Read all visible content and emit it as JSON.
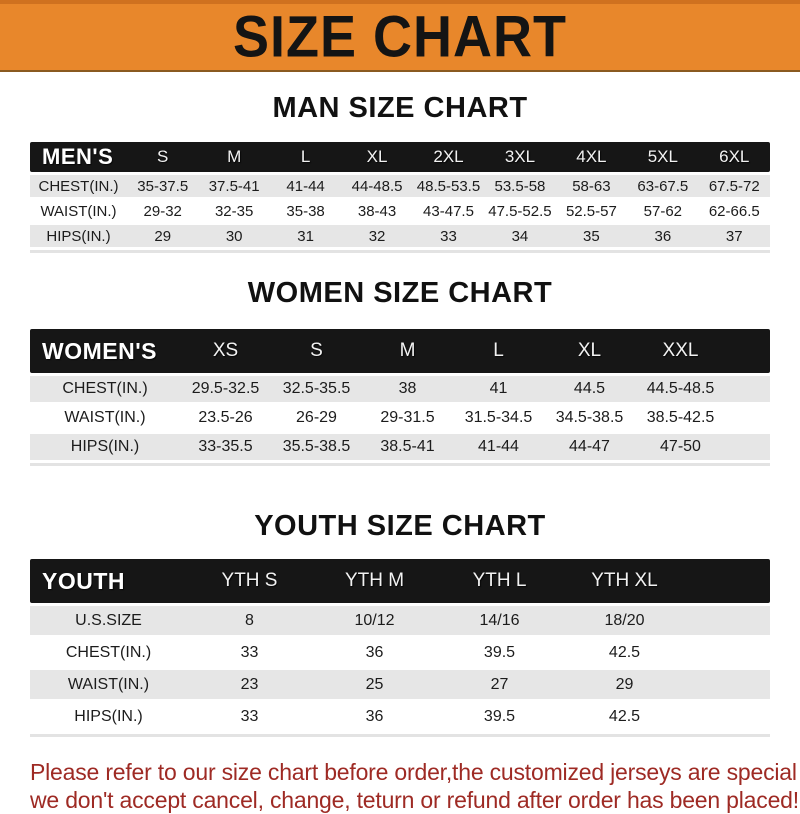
{
  "banner": {
    "title": "SIZE CHART"
  },
  "colors": {
    "banner_orange": "#e8872b",
    "header_black": "#161616",
    "row_gray": "#e6e6e6",
    "footer_red": "#9e2a24"
  },
  "sections": [
    {
      "heading": "MAN SIZE CHART",
      "table": {
        "title": "MEN'S",
        "sizes": [
          "S",
          "M",
          "L",
          "XL",
          "2XL",
          "3XL",
          "4XL",
          "5XL",
          "6XL"
        ],
        "rows": [
          {
            "label": "CHEST(IN.)",
            "values": [
              "35-37.5",
              "37.5-41",
              "41-44",
              "44-48.5",
              "48.5-53.5",
              "53.5-58",
              "58-63",
              "63-67.5",
              "67.5-72"
            ]
          },
          {
            "label": "WAIST(IN.)",
            "values": [
              "29-32",
              "32-35",
              "35-38",
              "38-43",
              "43-47.5",
              "47.5-52.5",
              "52.5-57",
              "57-62",
              "62-66.5"
            ]
          },
          {
            "label": "HIPS(IN.)",
            "values": [
              "29",
              "30",
              "31",
              "32",
              "33",
              "34",
              "35",
              "36",
              "37"
            ]
          }
        ]
      }
    },
    {
      "heading": "WOMEN SIZE CHART",
      "table": {
        "title": "WOMEN'S",
        "sizes": [
          "XS",
          "S",
          "M",
          "L",
          "XL",
          "XXL"
        ],
        "rows": [
          {
            "label": "CHEST(IN.)",
            "values": [
              "29.5-32.5",
              "32.5-35.5",
              "38",
              "41",
              "44.5",
              "44.5-48.5"
            ]
          },
          {
            "label": "WAIST(IN.)",
            "values": [
              "23.5-26",
              "26-29",
              "29-31.5",
              "31.5-34.5",
              "34.5-38.5",
              "38.5-42.5"
            ]
          },
          {
            "label": "HIPS(IN.)",
            "values": [
              "33-35.5",
              "35.5-38.5",
              "38.5-41",
              "41-44",
              "44-47",
              "47-50"
            ]
          }
        ]
      }
    },
    {
      "heading": "YOUTH SIZE CHART",
      "table": {
        "title": "YOUTH",
        "sizes": [
          "YTH S",
          "YTH M",
          "YTH L",
          "YTH XL"
        ],
        "rows": [
          {
            "label": "U.S.SIZE",
            "values": [
              "8",
              "10/12",
              "14/16",
              "18/20"
            ]
          },
          {
            "label": "CHEST(IN.)",
            "values": [
              "33",
              "36",
              "39.5",
              "42.5"
            ]
          },
          {
            "label": "WAIST(IN.)",
            "values": [
              "23",
              "25",
              "27",
              "29"
            ]
          },
          {
            "label": "HIPS(IN.)",
            "values": [
              "33",
              "36",
              "39.5",
              "42.5"
            ]
          }
        ]
      }
    }
  ],
  "footer": {
    "line1": "Please refer to our size chart before order,the customized jerseys are special products,",
    "line2": "we don't accept cancel, change, teturn or refund after order has been placed!"
  }
}
